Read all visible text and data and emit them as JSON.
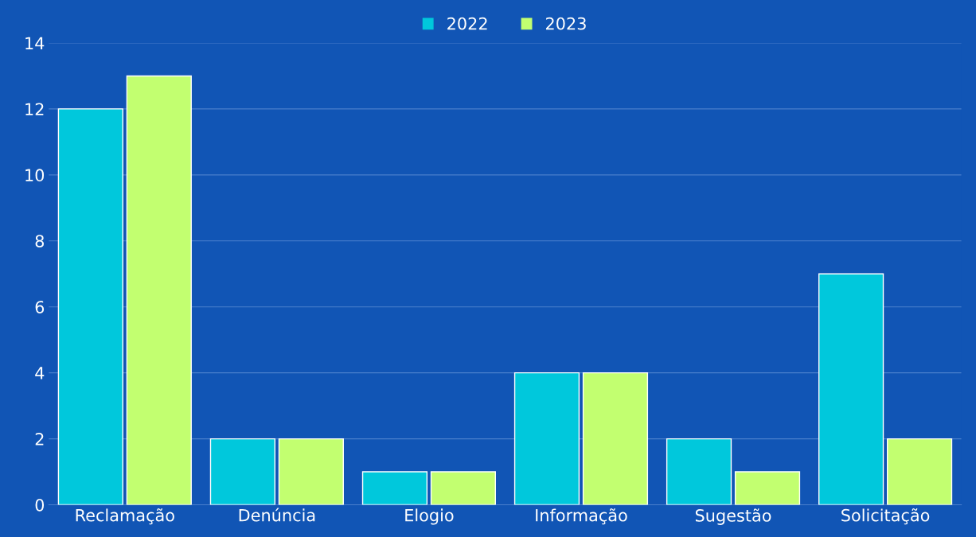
{
  "chart_data": {
    "type": "bar",
    "categories": [
      "Reclamação",
      "Denúncia",
      "Elogio",
      "Informação",
      "Sugestão",
      "Solicitação"
    ],
    "series": [
      {
        "name": "2022",
        "color": "#00c8dc",
        "values": [
          12,
          2,
          1,
          4,
          2,
          7
        ]
      },
      {
        "name": "2023",
        "color": "#c2ff70",
        "values": [
          13,
          2,
          1,
          4,
          1,
          2
        ]
      }
    ],
    "ylim": [
      0,
      14
    ],
    "yticks": [
      0,
      2,
      4,
      6,
      8,
      10,
      12,
      14
    ],
    "grid": "y",
    "legend": "top"
  }
}
